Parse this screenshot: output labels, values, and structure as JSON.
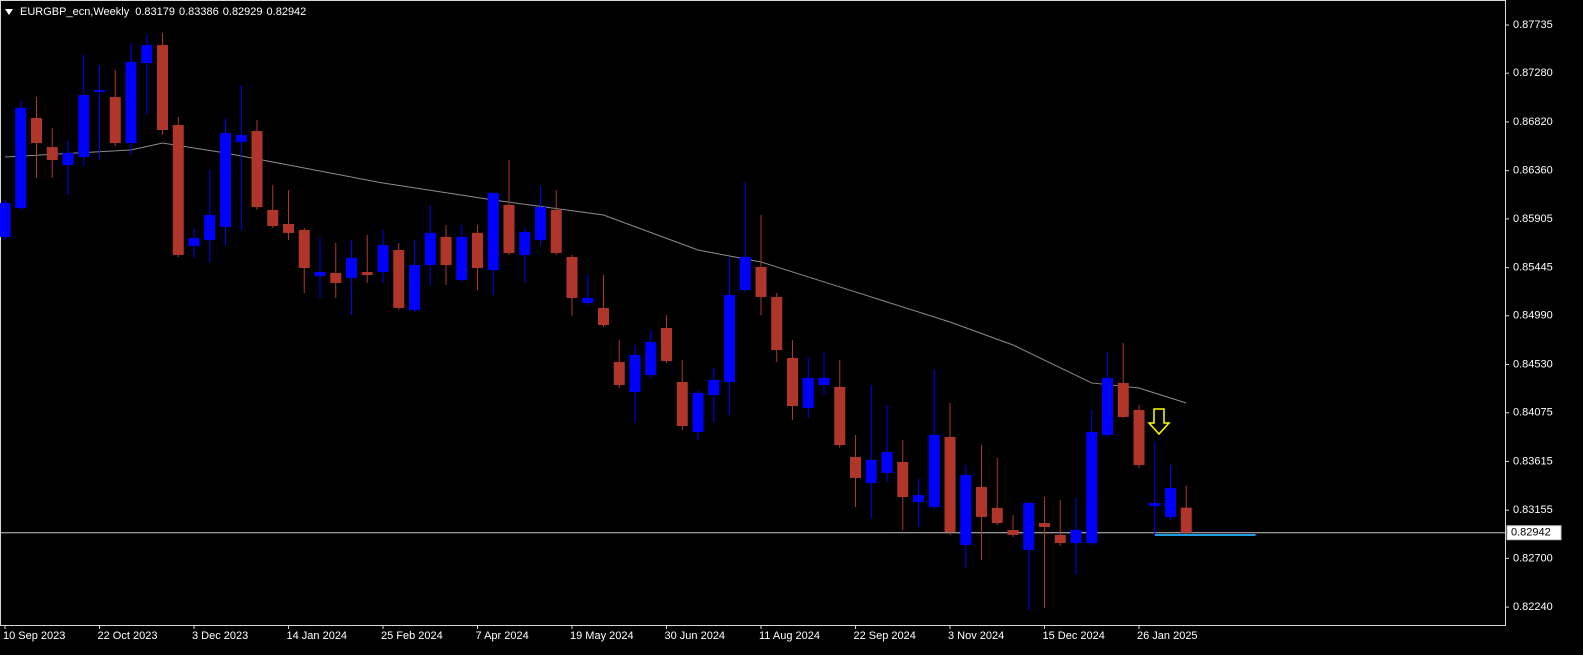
{
  "chart_data": {
    "type": "candlestick",
    "title": "EURGBP_ecn,Weekly",
    "categories": [
      "10 Sep 2023",
      null,
      null,
      null,
      null,
      null,
      "22 Oct 2023",
      null,
      null,
      null,
      null,
      null,
      "3 Dec 2023",
      null,
      null,
      null,
      null,
      null,
      "14 Jan 2024",
      null,
      null,
      null,
      null,
      null,
      "25 Feb 2024",
      null,
      null,
      null,
      null,
      null,
      "7 Apr 2024",
      null,
      null,
      null,
      null,
      null,
      "19 May 2024",
      null,
      null,
      null,
      null,
      null,
      "30 Jun 2024",
      null,
      null,
      null,
      null,
      null,
      "11 Aug 2024",
      null,
      null,
      null,
      null,
      null,
      "22 Sep 2024",
      null,
      null,
      null,
      null,
      null,
      "3 Nov 2024",
      null,
      null,
      null,
      null,
      null,
      "15 Dec 2024",
      null,
      null,
      null,
      null,
      null,
      "26 Jan 2025",
      null,
      null,
      null
    ],
    "open": [
      0.85734,
      0.86008,
      0.86857,
      0.86583,
      0.86413,
      0.86489,
      0.87103,
      0.87055,
      0.86621,
      0.87376,
      0.87546,
      0.86791,
      0.85649,
      0.85705,
      0.85828,
      0.86631,
      0.86734,
      0.85989,
      0.85856,
      0.858,
      0.85366,
      0.85394,
      0.85347,
      0.85403,
      0.85403,
      0.85611,
      0.85045,
      0.85469,
      0.85734,
      0.85328,
      0.85772,
      0.85422,
      0.86036,
      0.85564,
      0.85705,
      0.85989,
      0.85545,
      0.85111,
      0.85064,
      0.84554,
      0.84271,
      0.84431,
      0.84875,
      0.84365,
      0.83893,
      0.84242,
      0.84365,
      0.85233,
      0.85451,
      0.85167,
      0.84592,
      0.8412,
      0.84337,
      0.84318,
      0.83657,
      0.83412,
      0.83506,
      0.8361,
      0.83232,
      0.83185,
      0.83846,
      0.82826,
      0.83374,
      0.83176,
      0.82968,
      0.82779,
      0.83034,
      0.82921,
      0.82845,
      0.82845,
      0.83865,
      0.84356,
      0.84101,
      0.83194,
      0.83091,
      0.83179
    ],
    "high": [
      0.86083,
      0.87027,
      0.87055,
      0.86763,
      0.86649,
      0.87452,
      0.87357,
      0.8731,
      0.87565,
      0.87641,
      0.8766,
      0.86867,
      0.85819,
      0.86366,
      0.86857,
      0.87169,
      0.86838,
      0.86225,
      0.86177,
      0.85819,
      0.85724,
      0.85677,
      0.85705,
      0.85753,
      0.858,
      0.85677,
      0.85705,
      0.86036,
      0.85847,
      0.85847,
      0.85847,
      0.86159,
      0.86461,
      0.85819,
      0.86206,
      0.86177,
      0.85564,
      0.85375,
      0.85375,
      0.84761,
      0.84714,
      0.84856,
      0.84997,
      0.84573,
      0.84289,
      0.84497,
      0.85536,
      0.86253,
      0.85941,
      0.85205,
      0.84761,
      0.84601,
      0.84648,
      0.84573,
      0.83865,
      0.84337,
      0.84148,
      0.83817,
      0.83459,
      0.84478,
      0.84167,
      0.83581,
      0.8377,
      0.83648,
      0.83109,
      0.83232,
      0.83279,
      0.83251,
      0.8327,
      0.84101,
      0.84648,
      0.84733,
      0.84148,
      0.83799,
      0.83581,
      0.83386
    ],
    "low": [
      0.85705,
      0.85989,
      0.86291,
      0.86291,
      0.8613,
      0.86413,
      0.86461,
      0.86593,
      0.86508,
      0.86885,
      0.86697,
      0.85545,
      0.85536,
      0.85498,
      0.85658,
      0.858,
      0.85989,
      0.85819,
      0.85705,
      0.85205,
      0.85158,
      0.85158,
      0.84997,
      0.853,
      0.853,
      0.85045,
      0.85026,
      0.85281,
      0.85281,
      0.85309,
      0.85233,
      0.85186,
      0.85564,
      0.853,
      0.85658,
      0.85564,
      0.84988,
      0.85092,
      0.84884,
      0.84308,
      0.83978,
      0.84403,
      0.84544,
      0.83912,
      0.83817,
      0.83987,
      0.84053,
      0.85215,
      0.84997,
      0.84554,
      0.84006,
      0.84025,
      0.84242,
      0.83742,
      0.83185,
      0.83081,
      0.83421,
      0.82968,
      0.82996,
      0.83166,
      0.82921,
      0.82609,
      0.82685,
      0.83015,
      0.82902,
      0.82213,
      0.82232,
      0.82817,
      0.82543,
      0.82826,
      0.83846,
      0.84025,
      0.83553,
      0.82921,
      0.83062,
      0.82929
    ],
    "close": [
      0.86055,
      0.86952,
      0.86621,
      0.86461,
      0.86527,
      0.87074,
      0.87121,
      0.86621,
      0.87386,
      0.87546,
      0.86744,
      0.85564,
      0.85724,
      0.85941,
      0.86716,
      0.86697,
      0.86017,
      0.85838,
      0.85772,
      0.85441,
      0.85403,
      0.853,
      0.85536,
      0.85375,
      0.85658,
      0.85064,
      0.85469,
      0.85772,
      0.85469,
      0.85734,
      0.85441,
      0.86149,
      0.85583,
      0.85781,
      0.86017,
      0.85583,
      0.85158,
      0.85158,
      0.84903,
      0.84337,
      0.8462,
      0.84743,
      0.84563,
      0.8395,
      0.84261,
      0.84384,
      0.85186,
      0.85545,
      0.85167,
      0.84667,
      0.84138,
      0.84403,
      0.84403,
      0.8377,
      0.83459,
      0.83629,
      0.83704,
      0.83279,
      0.83298,
      0.83865,
      0.82949,
      0.83487,
      0.83091,
      0.83034,
      0.82921,
      0.83223,
      0.82996,
      0.82845,
      0.82968,
      0.83893,
      0.84403,
      0.84035,
      0.83581,
      0.83223,
      0.83364,
      0.82942
    ],
    "up_color": "#0000ff",
    "down_color": "#b0362c",
    "moving_average": {
      "color": "#8c8c8c",
      "x": [
        0,
        8,
        10,
        14,
        18,
        24,
        31,
        38,
        44,
        48,
        54,
        60,
        64,
        69,
        72,
        75
      ],
      "values": [
        0.86489,
        0.86555,
        0.86621,
        0.86527,
        0.86413,
        0.86243,
        0.86083,
        0.85941,
        0.85611,
        0.85498,
        0.85215,
        0.84931,
        0.84714,
        0.84356,
        0.84308,
        0.84167
      ]
    },
    "price_line_color": "#c8c8c8",
    "level_line": {
      "value": 0.82921,
      "x": [
        73,
        79.4
      ],
      "color": "#1e9be0"
    },
    "ylim": [
      0.82071,
      0.87971
    ],
    "yticks": [
      0.87735,
      {
        "value": 0.8728,
        "label": "0.87280"
      },
      {
        "value": 0.8682,
        "label": "0.86820"
      },
      {
        "value": 0.8636,
        "label": "0.86360"
      },
      0.85905,
      0.85445,
      {
        "value": 0.8499,
        "label": "0.84990"
      },
      {
        "value": 0.8453,
        "label": "0.84530"
      },
      0.84075,
      0.83615,
      0.83155,
      {
        "value": 0.827,
        "label": "0.82700"
      },
      {
        "value": 0.8224,
        "label": "0.82240"
      }
    ]
  }
}
